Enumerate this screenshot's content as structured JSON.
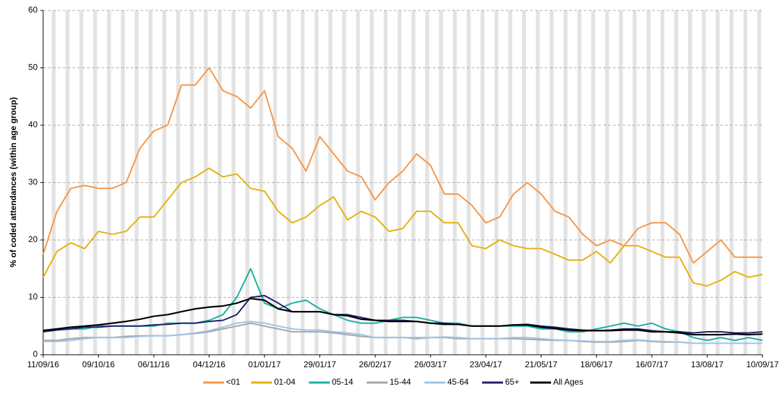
{
  "chart_data": {
    "type": "line",
    "y_label": "% of coded attendances (within age group)",
    "x": [
      "11/09/16",
      "18/09/16",
      "25/09/16",
      "02/10/16",
      "09/10/16",
      "16/10/16",
      "23/10/16",
      "30/10/16",
      "06/11/16",
      "13/11/16",
      "20/11/16",
      "27/11/16",
      "04/12/16",
      "11/12/16",
      "18/12/16",
      "25/12/16",
      "01/01/17",
      "08/01/17",
      "15/01/17",
      "22/01/17",
      "29/01/17",
      "05/02/17",
      "12/02/17",
      "19/02/17",
      "26/02/17",
      "05/03/17",
      "12/03/17",
      "19/03/17",
      "26/03/17",
      "02/04/17",
      "09/04/17",
      "16/04/17",
      "23/04/17",
      "30/04/17",
      "07/05/17",
      "14/05/17",
      "21/05/17",
      "28/05/17",
      "04/06/17",
      "11/06/17",
      "18/06/17",
      "25/06/17",
      "02/07/17",
      "09/07/17",
      "16/07/17",
      "23/07/17",
      "30/07/17",
      "06/08/17",
      "13/08/17",
      "20/08/17",
      "27/08/17",
      "03/09/17",
      "10/09/17"
    ],
    "xlim": [
      "11/09/16",
      "10/09/17"
    ],
    "xticks": [
      "11/09/16",
      "09/10/16",
      "06/11/16",
      "04/12/16",
      "01/01/17",
      "29/01/17",
      "26/02/17",
      "26/03/17",
      "23/04/17",
      "21/05/17",
      "18/06/17",
      "16/07/17",
      "13/08/17",
      "10/09/17"
    ],
    "ylim": [
      0,
      60
    ],
    "yticks": [
      0,
      10,
      20,
      30,
      40,
      50,
      60
    ],
    "grid": true,
    "legend": "bottom",
    "series": [
      {
        "name": "<01",
        "color": "#f79646",
        "values": [
          17.5,
          25,
          29,
          29.5,
          29,
          29,
          30,
          36,
          39,
          40,
          47,
          47,
          50,
          46,
          45,
          43,
          46,
          38,
          36,
          32,
          38,
          35,
          32,
          31,
          27,
          30,
          32,
          35,
          33,
          28,
          28,
          26,
          23,
          24,
          28,
          30,
          28,
          25,
          24,
          21,
          19,
          20,
          19,
          22,
          23,
          23,
          21,
          16,
          18,
          20,
          17,
          17,
          17
        ]
      },
      {
        "name": "01-04",
        "color": "#e6b10c",
        "values": [
          13.5,
          18,
          19.5,
          18.5,
          21.5,
          21,
          21.5,
          24,
          24,
          27,
          30,
          31,
          32.5,
          31,
          31.5,
          29,
          28.5,
          25,
          23,
          24,
          26,
          27.5,
          23.5,
          25,
          24,
          21.5,
          22,
          25,
          25,
          23,
          23,
          19,
          18.5,
          20,
          19,
          18.5,
          18.5,
          17.5,
          16.5,
          16.5,
          18,
          16,
          19,
          19,
          18,
          17,
          17,
          12.5,
          12,
          13,
          14.5,
          13.5,
          14
        ]
      },
      {
        "name": "05-14",
        "color": "#17b0a0",
        "values": [
          4.3,
          4.5,
          4.5,
          4.5,
          5,
          5,
          5,
          5,
          5,
          5.5,
          5.5,
          5.5,
          6,
          7,
          10,
          15,
          9,
          8,
          9,
          9.5,
          8,
          7,
          6,
          5.5,
          5.5,
          6,
          6.5,
          6.5,
          6,
          5.5,
          5.5,
          5,
          5,
          5,
          5,
          5,
          4.5,
          4.5,
          4,
          4,
          4.5,
          5,
          5.5,
          5,
          5.5,
          4.5,
          4,
          3,
          2.5,
          3,
          2.5,
          3,
          2.5
        ]
      },
      {
        "name": "15-44",
        "color": "#a6a6a6",
        "values": [
          2.5,
          2.5,
          2.8,
          3,
          3,
          3,
          3.2,
          3.3,
          3.3,
          3.3,
          3.5,
          3.7,
          4,
          4.5,
          5,
          5.5,
          5,
          4.5,
          4,
          4,
          4,
          3.8,
          3.5,
          3.2,
          3,
          3,
          3,
          2.8,
          3,
          3,
          2.8,
          2.8,
          2.8,
          2.8,
          2.8,
          2.7,
          2.6,
          2.5,
          2.5,
          2.3,
          2.2,
          2.2,
          2.3,
          2.5,
          2.3,
          2.2,
          2.2,
          2,
          2,
          2,
          2,
          2,
          2
        ]
      },
      {
        "name": "45-64",
        "color": "#9dc3e6",
        "values": [
          2.3,
          2.3,
          2.5,
          2.8,
          3,
          3,
          3,
          3.2,
          3.3,
          3.3,
          3.5,
          3.8,
          4.2,
          4.8,
          5.5,
          5.8,
          5.5,
          5,
          4.5,
          4.3,
          4.3,
          4,
          3.8,
          3.5,
          3,
          3,
          3,
          3,
          3,
          3.1,
          3,
          2.8,
          2.8,
          2.8,
          3,
          3,
          2.8,
          2.6,
          2.5,
          2.4,
          2.3,
          2.3,
          2.5,
          2.6,
          2.4,
          2.3,
          2.2,
          2,
          2,
          2,
          2,
          2,
          2
        ]
      },
      {
        "name": "65+",
        "color": "#1f1f6b",
        "values": [
          4,
          4.3,
          4.5,
          4.8,
          4.8,
          5,
          5,
          5,
          5.2,
          5.3,
          5.5,
          5.5,
          5.8,
          6,
          7,
          10,
          10.3,
          9,
          7.5,
          7.5,
          7.5,
          7,
          7,
          6.5,
          6,
          6,
          6,
          5.8,
          5.5,
          5.5,
          5.3,
          5,
          5,
          5,
          5.2,
          5.3,
          5,
          4.8,
          4.5,
          4.3,
          4.2,
          4.3,
          4.5,
          4.5,
          4.2,
          4,
          4,
          3.8,
          4,
          4,
          3.8,
          3.8,
          4
        ]
      },
      {
        "name": "All Ages",
        "color": "#000000",
        "values": [
          4.2,
          4.5,
          4.8,
          5,
          5.2,
          5.5,
          5.8,
          6.2,
          6.7,
          7,
          7.5,
          8,
          8.3,
          8.5,
          9,
          9.8,
          9.5,
          8,
          7.5,
          7.5,
          7.5,
          7,
          6.8,
          6.2,
          6,
          5.8,
          5.8,
          5.8,
          5.5,
          5.3,
          5.3,
          5,
          5,
          5,
          5.2,
          5.2,
          4.8,
          4.6,
          4.3,
          4.2,
          4.2,
          4.2,
          4.3,
          4.3,
          4,
          4,
          3.8,
          3.5,
          3.5,
          3.5,
          3.6,
          3.5,
          3.6
        ]
      }
    ]
  }
}
